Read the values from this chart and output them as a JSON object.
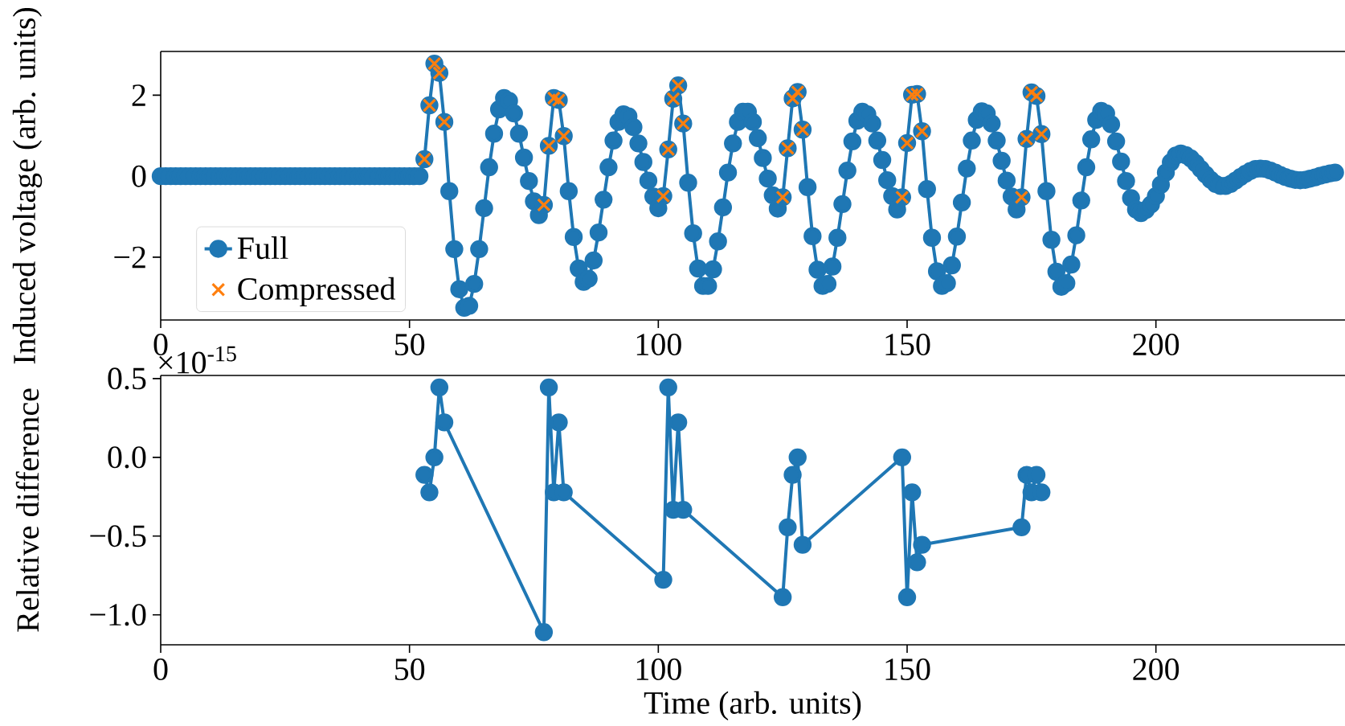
{
  "chart_data": [
    {
      "type": "line",
      "ylabel": "Induced voltage (arb. units)",
      "xlim": [
        0,
        238
      ],
      "ylim": [
        -3.55,
        3.08
      ],
      "xticks": [
        0,
        50,
        100,
        150,
        200
      ],
      "yticks": [
        {
          "value": -2,
          "label": "−2"
        },
        {
          "value": 0,
          "label": "0"
        },
        {
          "value": 2,
          "label": "2"
        }
      ],
      "legend": "bottom left",
      "series": [
        {
          "name": "Full",
          "type": "line",
          "marker": "circle",
          "color": "#1f77b4",
          "x": [
            0,
            1,
            2,
            3,
            4,
            5,
            6,
            7,
            8,
            9,
            10,
            11,
            12,
            13,
            14,
            15,
            16,
            17,
            18,
            19,
            20,
            21,
            22,
            23,
            24,
            25,
            26,
            27,
            28,
            29,
            30,
            31,
            32,
            33,
            34,
            35,
            36,
            37,
            38,
            39,
            40,
            41,
            42,
            43,
            44,
            45,
            46,
            47,
            48,
            49,
            50,
            51,
            52,
            53,
            54,
            55,
            56,
            57,
            58,
            59,
            60,
            61,
            62,
            63,
            64,
            65,
            66,
            67,
            68,
            69,
            70,
            71,
            72,
            73,
            74,
            75,
            76,
            77,
            78,
            79,
            80,
            81,
            82,
            83,
            84,
            85,
            86,
            87,
            88,
            89,
            90,
            91,
            92,
            93,
            94,
            95,
            96,
            97,
            98,
            99,
            100,
            101,
            102,
            103,
            104,
            105,
            106,
            107,
            108,
            109,
            110,
            111,
            112,
            113,
            114,
            115,
            116,
            117,
            118,
            119,
            120,
            121,
            122,
            123,
            124,
            125,
            126,
            127,
            128,
            129,
            130,
            131,
            132,
            133,
            134,
            135,
            136,
            137,
            138,
            139,
            140,
            141,
            142,
            143,
            144,
            145,
            146,
            147,
            148,
            149,
            150,
            151,
            152,
            153,
            154,
            155,
            156,
            157,
            158,
            159,
            160,
            161,
            162,
            163,
            164,
            165,
            166,
            167,
            168,
            169,
            170,
            171,
            172,
            173,
            174,
            175,
            176,
            177,
            178,
            179,
            180,
            181,
            182,
            183,
            184,
            185,
            186,
            187,
            188,
            189,
            190,
            191,
            192,
            193,
            194,
            195,
            196,
            197,
            198,
            199,
            200,
            201,
            202,
            203,
            204,
            205,
            206,
            207,
            208,
            209,
            210,
            211,
            212,
            213,
            214,
            215,
            216,
            217,
            218,
            219,
            220,
            221,
            222,
            223,
            224,
            225,
            226,
            227,
            228,
            229,
            230,
            231,
            232,
            233,
            234,
            235,
            236
          ],
          "values": [
            0,
            0,
            0,
            0,
            0,
            0,
            0,
            0,
            0,
            0,
            0,
            0,
            0,
            0,
            0,
            0,
            0,
            0,
            0,
            0,
            0,
            0,
            0,
            0,
            0,
            0,
            0,
            0,
            0,
            0,
            0,
            0,
            0,
            0,
            0,
            0,
            0,
            0,
            0,
            0,
            0,
            0,
            0,
            0,
            0,
            0,
            0,
            0,
            0,
            0,
            0,
            0,
            0,
            0.42,
            1.75,
            2.78,
            2.55,
            1.34,
            -0.37,
            -1.8,
            -2.79,
            -3.25,
            -3.2,
            -2.66,
            -1.8,
            -0.79,
            0.22,
            1.05,
            1.65,
            1.93,
            1.86,
            1.55,
            1.05,
            0.46,
            -0.12,
            -0.62,
            -0.96,
            -0.71,
            0.75,
            1.93,
            1.88,
            0.99,
            -0.37,
            -1.5,
            -2.28,
            -2.61,
            -2.53,
            -2.08,
            -1.39,
            -0.58,
            0.22,
            0.88,
            1.34,
            1.53,
            1.48,
            1.21,
            0.81,
            0.35,
            -0.11,
            -0.5,
            -0.79,
            -0.49,
            0.66,
            1.91,
            2.24,
            1.3,
            -0.16,
            -1.41,
            -2.28,
            -2.71,
            -2.71,
            -2.3,
            -1.61,
            -0.77,
            0.09,
            0.81,
            1.34,
            1.59,
            1.59,
            1.34,
            0.94,
            0.45,
            -0.06,
            -0.47,
            -0.8,
            -0.52,
            0.69,
            1.92,
            2.08,
            1.15,
            -0.27,
            -1.48,
            -2.31,
            -2.71,
            -2.66,
            -2.23,
            -1.52,
            -0.69,
            0.14,
            0.86,
            1.37,
            1.59,
            1.53,
            1.3,
            0.88,
            0.4,
            -0.1,
            -0.49,
            -0.82,
            -0.52,
            0.82,
            2.01,
            2.03,
            1.11,
            -0.32,
            -1.52,
            -2.35,
            -2.71,
            -2.64,
            -2.2,
            -1.49,
            -0.65,
            0.19,
            0.88,
            1.39,
            1.6,
            1.55,
            1.3,
            0.88,
            0.38,
            -0.11,
            -0.5,
            -0.82,
            -0.52,
            0.92,
            2.07,
            1.98,
            1.04,
            -0.37,
            -1.57,
            -2.36,
            -2.73,
            -2.64,
            -2.18,
            -1.46,
            -0.6,
            0.22,
            0.91,
            1.39,
            1.61,
            1.55,
            1.28,
            0.86,
            0.36,
            -0.12,
            -0.54,
            -0.82,
            -0.91,
            -0.83,
            -0.7,
            -0.49,
            -0.21,
            0.09,
            0.34,
            0.51,
            0.56,
            0.52,
            0.44,
            0.32,
            0.18,
            0.04,
            -0.09,
            -0.19,
            -0.24,
            -0.24,
            -0.19,
            -0.11,
            -0.02,
            0.06,
            0.13,
            0.18,
            0.19,
            0.18,
            0.14,
            0.09,
            0.03,
            -0.02,
            -0.06,
            -0.09,
            -0.1,
            -0.09,
            -0.06,
            -0.03,
            0.01,
            0.04,
            0.07,
            0.09
          ]
        },
        {
          "name": "Compressed",
          "type": "scatter",
          "marker": "cross",
          "color": "#ff7f0e",
          "x": [
            53,
            54,
            55,
            56,
            57,
            77,
            78,
            79,
            80,
            81,
            101,
            102,
            103,
            104,
            105,
            125,
            126,
            127,
            128,
            129,
            149,
            150,
            151,
            152,
            153,
            173,
            174,
            175,
            176,
            177
          ],
          "values": [
            0.42,
            1.75,
            2.78,
            2.55,
            1.34,
            -0.71,
            0.75,
            1.93,
            1.88,
            0.99,
            -0.49,
            0.66,
            1.91,
            2.24,
            1.3,
            -0.52,
            0.69,
            1.92,
            2.08,
            1.15,
            -0.52,
            0.82,
            2.01,
            2.03,
            1.11,
            -0.52,
            0.92,
            2.07,
            1.98,
            1.04
          ]
        }
      ]
    },
    {
      "type": "line",
      "ylabel": "Relative difference",
      "xlabel": "Time (arb. units)",
      "xlim": [
        0,
        238
      ],
      "ylim": [
        -1.19,
        0.52
      ],
      "xticks": [
        0,
        50,
        100,
        150,
        200
      ],
      "yticks": [
        {
          "value": -1.0,
          "label": "−1.0"
        },
        {
          "value": -0.5,
          "label": "−0.5"
        },
        {
          "value": 0,
          "label": "0.0"
        },
        {
          "value": 0.5,
          "label": "0.5"
        }
      ],
      "annotations": [
        "×10$^{-15}$"
      ],
      "series": [
        {
          "type": "line",
          "marker": "circle",
          "color": "#1f77b4",
          "x": [
            53,
            54,
            55,
            56,
            57,
            77,
            78,
            79,
            80,
            81,
            101,
            102,
            103,
            104,
            105,
            125,
            126,
            127,
            128,
            129,
            149,
            150,
            151,
            152,
            153,
            173,
            174,
            175,
            176,
            177
          ],
          "values": [
            -0.111,
            -0.222,
            0,
            0.444,
            0.222,
            -1.11,
            0.444,
            -0.222,
            0.222,
            -0.222,
            -0.777,
            0.444,
            -0.333,
            0.222,
            -0.333,
            -0.888,
            -0.444,
            -0.111,
            0,
            -0.555,
            0,
            -0.888,
            -0.222,
            -0.666,
            -0.555,
            -0.444,
            -0.111,
            -0.222,
            -0.111,
            -0.222
          ]
        }
      ]
    }
  ]
}
